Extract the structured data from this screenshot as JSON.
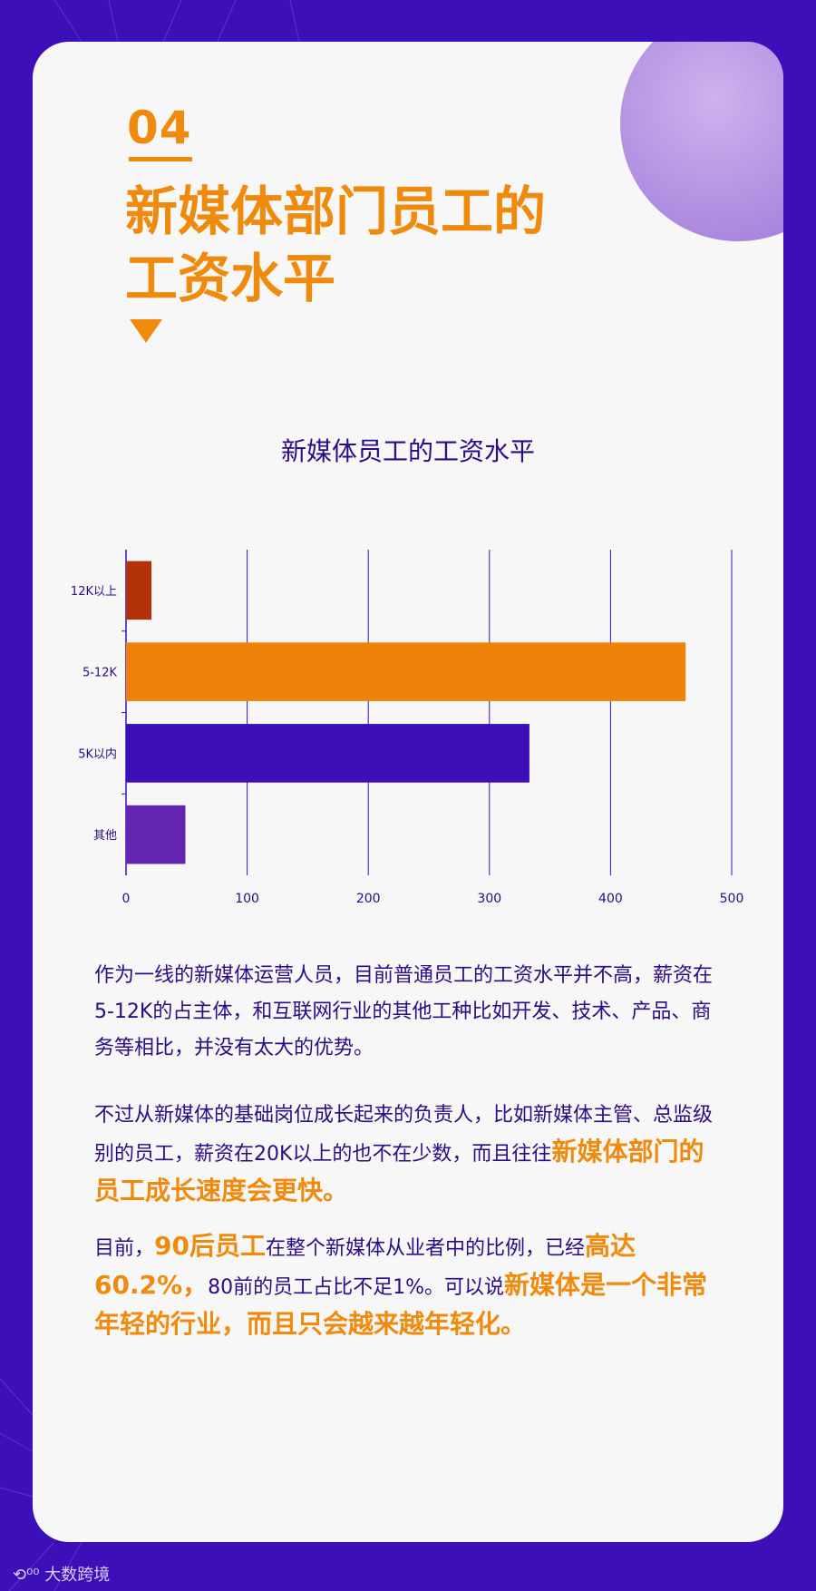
{
  "section": {
    "number": "04",
    "title_line1": "新媒体部门员工的",
    "title_line2": "工资水平"
  },
  "chart_data": {
    "type": "bar",
    "orientation": "horizontal",
    "title": "新媒体员工的工资水平",
    "categories": [
      "12K以上",
      "5-12K",
      "5K以内",
      "其他"
    ],
    "values": [
      21,
      462,
      333,
      49
    ],
    "colors": [
      "#b23309",
      "#ef8208",
      "#3c0fb8",
      "#6324b0"
    ],
    "xlim": [
      0,
      500
    ],
    "xticks": [
      0,
      100,
      200,
      300,
      400,
      500
    ],
    "grid": true
  },
  "paragraphs": {
    "p1": "作为一线的新媒体运营人员，目前普通员工的工资水平并不高，薪资在5-12K的占主体，和互联网行业的其他工种比如开发、技术、产品、商务等相比，并没有太大的优势。",
    "p2_a": "不过从新媒体的基础岗位成长起来的负责人，比如新媒体主管、总监级别的员工，薪资在20K以上的也不在少数，而且往往",
    "p2_b": "新媒体部门的员工成长速度会更快。",
    "p3_a": "目前，",
    "p3_b": "90后员工",
    "p3_c": "在整个新媒体从业者中的比例，已经",
    "p3_d": "高达60.2%，",
    "p3_e": "80前的员工占比不足1%。可以说",
    "p3_f": "新媒体是一个非常年轻的行业，而且只会越来越年轻化。"
  },
  "footer": {
    "brand": "大数跨境"
  },
  "colors": {
    "background": "#3c0fb8",
    "accent": "#f08a0c",
    "text": "#2d0a86"
  }
}
